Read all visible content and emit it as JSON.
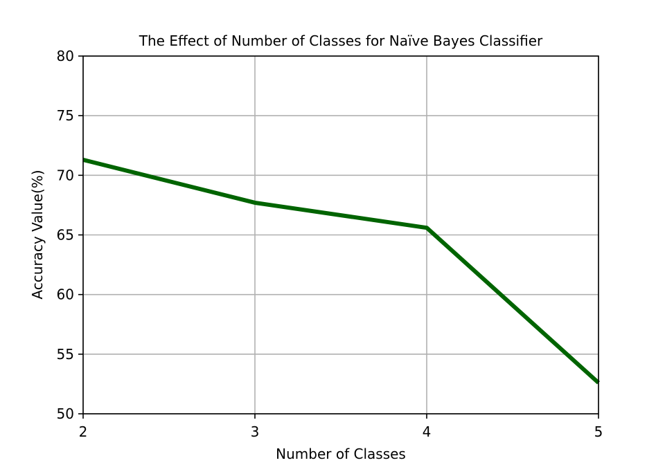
{
  "chart_data": {
    "type": "line",
    "title": "The Effect of Number of Classes for Naïve Bayes Classifier",
    "xlabel": "Number of Classes",
    "ylabel": "Accuracy Value(%)",
    "x": [
      2,
      3,
      4,
      5
    ],
    "xticks": [
      "2",
      "3",
      "4",
      "5"
    ],
    "yticks": [
      "50",
      "55",
      "60",
      "65",
      "70",
      "75",
      "80"
    ],
    "xlim": [
      2,
      5
    ],
    "ylim": [
      50,
      80
    ],
    "grid": true,
    "series": [
      {
        "values": [
          71.3,
          67.7,
          65.6,
          52.6
        ],
        "color": "#006400"
      }
    ]
  }
}
